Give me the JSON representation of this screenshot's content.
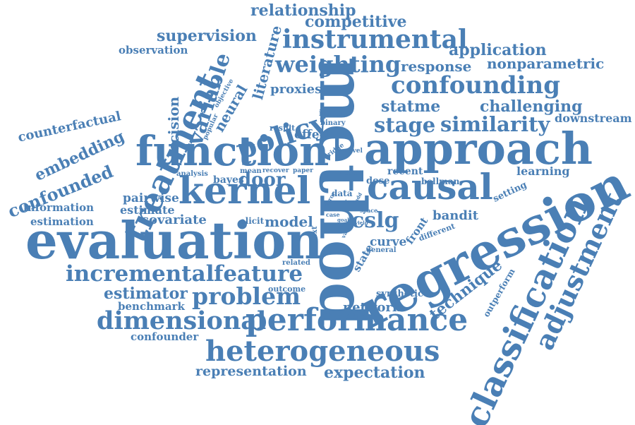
{
  "word_color": "#4a7fb5",
  "background": "#ffffff",
  "words": {
    "method": "method",
    "function": "function",
    "approach": "approach",
    "evaluation": "evaluation",
    "regression": "regression",
    "kernel": "kernel",
    "causal": "causal",
    "treatment": "treatment",
    "classification": "classification",
    "adjustment": "adjustment",
    "performance": "performance",
    "heterogeneous": "heterogeneous",
    "instrumental": "instrumental",
    "weighting": "weighting",
    "confounding": "confounding",
    "policy": "policy",
    "dimensional": "dimensional",
    "incremental": "incremental",
    "feature": "feature",
    "problem": "problem",
    "similarity": "similarity",
    "stage": "stage",
    "variable": "variable",
    "relationship": "relationship",
    "competitive": "competitive",
    "supervision": "supervision",
    "application": "application",
    "response": "response",
    "nonparametric": "nonparametric",
    "statme": "statme",
    "challenging": "challenging",
    "confounded": "confounded",
    "embedding": "embedding",
    "counterfactual": "counterfactual",
    "estimator": "estimator",
    "expectation": "expectation",
    "representation": "representation",
    "technique": "technique",
    "literature": "literature",
    "neural": "neural",
    "decision": "decision",
    "observation": "observation",
    "downstream": "downstream",
    "learning": "learning",
    "cslg": "cslg",
    "door": "door",
    "network": "network",
    "proxies": "proxies",
    "effect": "effect",
    "model": "model",
    "covariate": "covariate",
    "pairwise": "pairwise",
    "estimate": "estimate",
    "information": "information",
    "estimation": "estimation",
    "benchmark": "benchmark",
    "confounder": "confounder",
    "bandit": "bandit",
    "outcome": "outcome",
    "curve": "curve",
    "state": "state",
    "front": "front",
    "synthetic": "synthetic",
    "outperform": "outperform",
    "bayes": "bayes",
    "dose": "dose",
    "recent": "recent",
    "setting": "setting",
    "different": "different",
    "rule": "rule",
    "related": "related",
    "general": "general",
    "elicit": "elicit",
    "result": "result",
    "image": "image",
    "binary": "binary",
    "ridge": "ridge",
    "novel": "novel",
    "analysis": "analysis",
    "mean": "mean",
    "recover": "recover",
    "paper": "paper",
    "bellman": "bellman",
    "data": "data",
    "error": "error",
    "true": "true",
    "add": "add",
    "space": "space",
    "case": "case",
    "goal": "goal",
    "yield": "yield",
    "value": "value",
    "context": "context",
    "popular": "popular",
    "objective": "objective"
  }
}
